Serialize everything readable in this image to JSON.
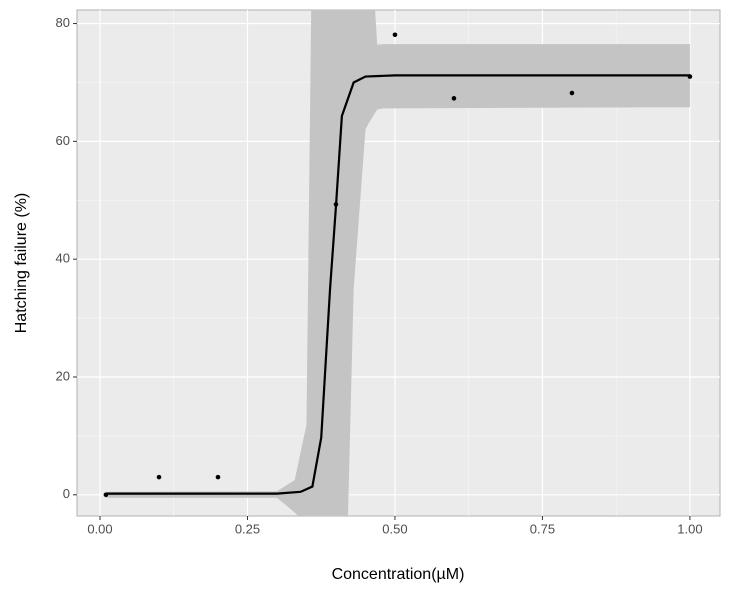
{
  "chart_data": {
    "type": "scatter",
    "x_label": "Concentration(µM)",
    "y_label": "Hatching failure (%)",
    "xlim": [
      -0.039,
      1.051
    ],
    "ylim": [
      -3.6,
      82.3
    ],
    "xticks": [
      {
        "value": 0,
        "label": "0.00"
      },
      {
        "value": 0.25,
        "label": "0.25"
      },
      {
        "value": 0.5,
        "label": "0.50"
      },
      {
        "value": 0.75,
        "label": "0.75"
      },
      {
        "value": 1,
        "label": "1.00"
      }
    ],
    "yticks": [
      0,
      20,
      40,
      60,
      80
    ],
    "grid": true,
    "points": {
      "color": "#000000",
      "x": [
        0.01,
        0.1,
        0.2,
        0.4,
        0.5,
        0.6,
        0.8,
        1.0
      ],
      "values": [
        0,
        3,
        3,
        49.3,
        78.1,
        67.3,
        68.2,
        71
      ]
    },
    "fit": {
      "color": "#000000",
      "x": [
        0.01,
        0.1,
        0.2,
        0.3,
        0.34,
        0.36,
        0.375,
        0.39,
        0.4,
        0.41,
        0.43,
        0.45,
        0.5,
        0.75,
        1.0
      ],
      "values": [
        0.2,
        0.2,
        0.2,
        0.2,
        0.5,
        1.4,
        9.7,
        35,
        49,
        64.3,
        70,
        71,
        71.2,
        71.2,
        71.2
      ]
    },
    "band": {
      "color": "#c4c4c4",
      "x": [
        0.01,
        0.3,
        0.33,
        0.35,
        0.36,
        0.375,
        0.42,
        0.43,
        0.45,
        0.455,
        0.47,
        0.48,
        1.0
      ],
      "upper": [
        0.5,
        0.6,
        2.5,
        11.9,
        100,
        100,
        100,
        100,
        100,
        100,
        76.4,
        76.5,
        76.5
      ],
      "lower": [
        -0.5,
        -0.5,
        -3,
        -5,
        -5,
        -5,
        -5,
        35,
        62,
        63,
        65.4,
        65.6,
        65.8
      ]
    }
  }
}
